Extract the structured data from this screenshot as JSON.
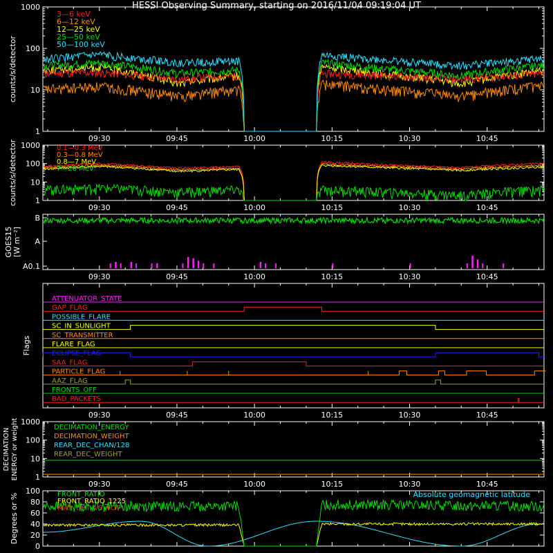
{
  "title": "HESSI Observing Summary, starting on 2016/11/04 09:19:04 UT",
  "colors": {
    "background": "#000000",
    "axes": "#ffffff",
    "red": "#ff2020",
    "orange": "#ff8c00",
    "yellow": "#ffff00",
    "green": "#00e000",
    "cyan": "#30e0ff",
    "magenta": "#ff20ff",
    "blue": "#2020ff",
    "olive": "#a0a020"
  },
  "time_ticks": [
    "09:30",
    "09:45",
    "10:00",
    "10:15",
    "10:30",
    "10:45"
  ],
  "chart_data": [
    {
      "id": "lo_energy",
      "type": "line",
      "ylabel": "counts/s/detector",
      "yscale": "log",
      "ylim": [
        1,
        1000
      ],
      "ytick_labels": [
        "1",
        "10",
        "100",
        "1000"
      ],
      "series": [
        {
          "name": "3—6 keV",
          "color": "red",
          "x": [
            "09:19",
            "09:30",
            "09:45",
            "09:57",
            "09:58",
            "10:12",
            "10:13",
            "10:25",
            "10:40",
            "10:55"
          ],
          "y": [
            25,
            26,
            18,
            22,
            1,
            1,
            25,
            22,
            18,
            24
          ]
        },
        {
          "name": "6—12 keV",
          "color": "orange",
          "x": [
            "09:19",
            "09:30",
            "09:45",
            "09:57",
            "09:58",
            "10:12",
            "10:13",
            "10:25",
            "10:40",
            "10:55"
          ],
          "y": [
            10,
            12,
            7,
            10,
            1,
            1,
            14,
            10,
            7,
            12
          ]
        },
        {
          "name": "12—25 keV",
          "color": "yellow",
          "x": [
            "09:19",
            "09:30",
            "09:45",
            "09:57",
            "09:58",
            "10:12",
            "10:13",
            "10:25",
            "10:40",
            "10:55"
          ],
          "y": [
            30,
            35,
            14,
            22,
            1,
            1,
            36,
            24,
            14,
            28
          ]
        },
        {
          "name": "25—50 keV",
          "color": "green",
          "x": [
            "09:19",
            "09:30",
            "09:45",
            "09:57",
            "09:58",
            "10:12",
            "10:13",
            "10:25",
            "10:40",
            "10:55"
          ],
          "y": [
            38,
            45,
            25,
            30,
            1,
            1,
            45,
            32,
            22,
            38
          ]
        },
        {
          "name": "50—100 keV",
          "color": "cyan",
          "x": [
            "09:19",
            "09:30",
            "09:45",
            "09:57",
            "09:58",
            "10:12",
            "10:13",
            "10:25",
            "10:40",
            "10:55"
          ],
          "y": [
            55,
            70,
            45,
            50,
            1,
            1,
            68,
            52,
            38,
            55
          ]
        }
      ]
    },
    {
      "id": "hi_energy",
      "type": "line",
      "ylabel": "counts/s/detector",
      "yscale": "log",
      "ylim": [
        1,
        1000
      ],
      "ytick_labels": [
        "1",
        "10",
        "100",
        "1000"
      ],
      "series": [
        {
          "name": "0.1—0.3 MeV",
          "color": "red",
          "x": [
            "09:19",
            "09:30",
            "09:45",
            "09:57",
            "09:58",
            "10:12",
            "10:13",
            "10:25",
            "10:40",
            "10:55"
          ],
          "y": [
            70,
            100,
            55,
            70,
            1,
            1,
            120,
            85,
            60,
            100
          ]
        },
        {
          "name": "0.3—0.8 MeV",
          "color": "orange",
          "x": [
            "09:19",
            "09:30",
            "09:45",
            "09:57",
            "09:58",
            "10:12",
            "10:13",
            "10:25",
            "10:40",
            "10:55"
          ],
          "y": [
            60,
            80,
            45,
            55,
            1,
            1,
            95,
            70,
            50,
            80
          ]
        },
        {
          "name": "0.8—7 MeV",
          "color": "yellow",
          "x": [
            "09:19",
            "09:30",
            "09:45",
            "09:57",
            "09:58",
            "10:12",
            "10:13",
            "10:25",
            "10:40",
            "10:55"
          ],
          "y": [
            50,
            70,
            38,
            48,
            1,
            1,
            80,
            60,
            42,
            65
          ]
        },
        {
          "name": "7—20 MeV",
          "color": "green",
          "x": [
            "09:19",
            "09:30",
            "09:45",
            "09:57",
            "09:58",
            "10:12",
            "10:13",
            "10:25",
            "10:40",
            "10:55"
          ],
          "y": [
            4,
            5,
            3,
            4,
            1,
            1,
            4,
            3,
            2,
            4
          ]
        }
      ]
    },
    {
      "id": "goes",
      "type": "line",
      "ylabel": "GOES15 [W m⁻²]",
      "ytick_labels": [
        "A0.1",
        "A",
        "B"
      ],
      "series": [
        {
          "name": "goes_long",
          "color": "green",
          "x": [
            "09:19",
            "10:55"
          ],
          "y": [
            "B",
            "B"
          ]
        },
        {
          "name": "goes_short",
          "color": "magenta",
          "x": [
            "09:33",
            "09:36",
            "09:41",
            "09:47",
            "09:48",
            "09:49",
            "10:01",
            "10:42",
            "10:43"
          ],
          "y": [
            0.5,
            0.5,
            0.4,
            0.9,
            0.8,
            0.6,
            0.5,
            1.0,
            0.7
          ]
        }
      ]
    },
    {
      "id": "flags",
      "type": "line",
      "ylabel": "Flags",
      "series": [
        {
          "name": "ATTENUATOR_STATE",
          "color": "magenta",
          "on": []
        },
        {
          "name": "GAP_FLAG",
          "color": "red",
          "on": [
            [
              "09:58",
              "10:13"
            ]
          ]
        },
        {
          "name": "POSSIBLE_FLARE",
          "color": "cyan",
          "on": []
        },
        {
          "name": "SC_IN_SUNLIGHT",
          "color": "yellow",
          "on": [
            [
              "09:36",
              "10:35"
            ]
          ]
        },
        {
          "name": "SC_TRANSMITTER",
          "color": "orange",
          "on": []
        },
        {
          "name": "FLARE_FLAG",
          "color": "yellow",
          "on": []
        },
        {
          "name": "ECLIPSE_FLAG",
          "color": "blue",
          "on": [
            [
              "09:19",
              "09:36"
            ],
            [
              "10:35",
              "10:55"
            ]
          ]
        },
        {
          "name": "SAA_FLAG",
          "color": "red",
          "on": [
            [
              "09:48",
              "10:10"
            ]
          ]
        },
        {
          "name": "PARTICLE_FLAG",
          "color": "orange",
          "on": [
            [
              "10:25",
              "10:35"
            ],
            [
              "10:38",
              "10:52"
            ]
          ]
        },
        {
          "name": "AAZ_FLAG",
          "color": "olive",
          "on": [
            [
              "09:35",
              "09:36"
            ],
            [
              "10:35",
              "10:36"
            ]
          ]
        },
        {
          "name": "FRONTS_OFF",
          "color": "green",
          "on": []
        },
        {
          "name": "BAD_PACKETS",
          "color": "red",
          "on": [
            [
              "10:51",
              "10:51"
            ]
          ]
        }
      ]
    },
    {
      "id": "decimation",
      "type": "line",
      "ylabel": "DECIMATION ENERGY or weight",
      "yscale": "log",
      "ylim": [
        1,
        1000
      ],
      "ytick_labels": [
        "1",
        "10",
        "100",
        "1000"
      ],
      "series": [
        {
          "name": "DECIMATION_ENERGY",
          "color": "green",
          "x": [
            "09:19",
            "10:55"
          ],
          "y": [
            8,
            8
          ]
        },
        {
          "name": "DECIMATION_WEIGHT",
          "color": "orange",
          "x": [
            "09:19",
            "10:55"
          ],
          "y": [
            1.4,
            1.4
          ]
        },
        {
          "name": "REAR_DEC_CHAN/128",
          "color": "cyan",
          "x": [],
          "y": []
        },
        {
          "name": "REAR_DEC_WEIGHT",
          "color": "olive",
          "x": [],
          "y": []
        }
      ]
    },
    {
      "id": "ratio",
      "type": "line",
      "ylabel": "Degrees or %",
      "ylim": [
        0,
        100
      ],
      "ytick_labels": [
        "0",
        "20",
        "40",
        "60",
        "80",
        "100"
      ],
      "annotation": "Absolute geomagnetic latitude",
      "series": [
        {
          "name": "FRONT_RATIO",
          "color": "green",
          "x": [
            "09:19",
            "09:57",
            "09:58",
            "10:12",
            "10:13",
            "10:55"
          ],
          "y": [
            72,
            72,
            0,
            0,
            75,
            72
          ]
        },
        {
          "name": "FRONT_RATIO_1225",
          "color": "yellow",
          "x": [
            "09:19",
            "09:57",
            "09:58",
            "10:12",
            "10:13",
            "10:55"
          ],
          "y": [
            38,
            38,
            0,
            0,
            40,
            40
          ]
        },
        {
          "name": "MAX_DET_VS_TOT",
          "color": "red",
          "x": [],
          "y": []
        },
        {
          "name": "Absolute geomagnetic latitude",
          "color": "cyan",
          "x": [
            "09:19",
            "09:38",
            "09:51",
            "10:12",
            "10:40",
            "10:55"
          ],
          "y": [
            25,
            45,
            0,
            45,
            0,
            40
          ]
        }
      ]
    }
  ]
}
